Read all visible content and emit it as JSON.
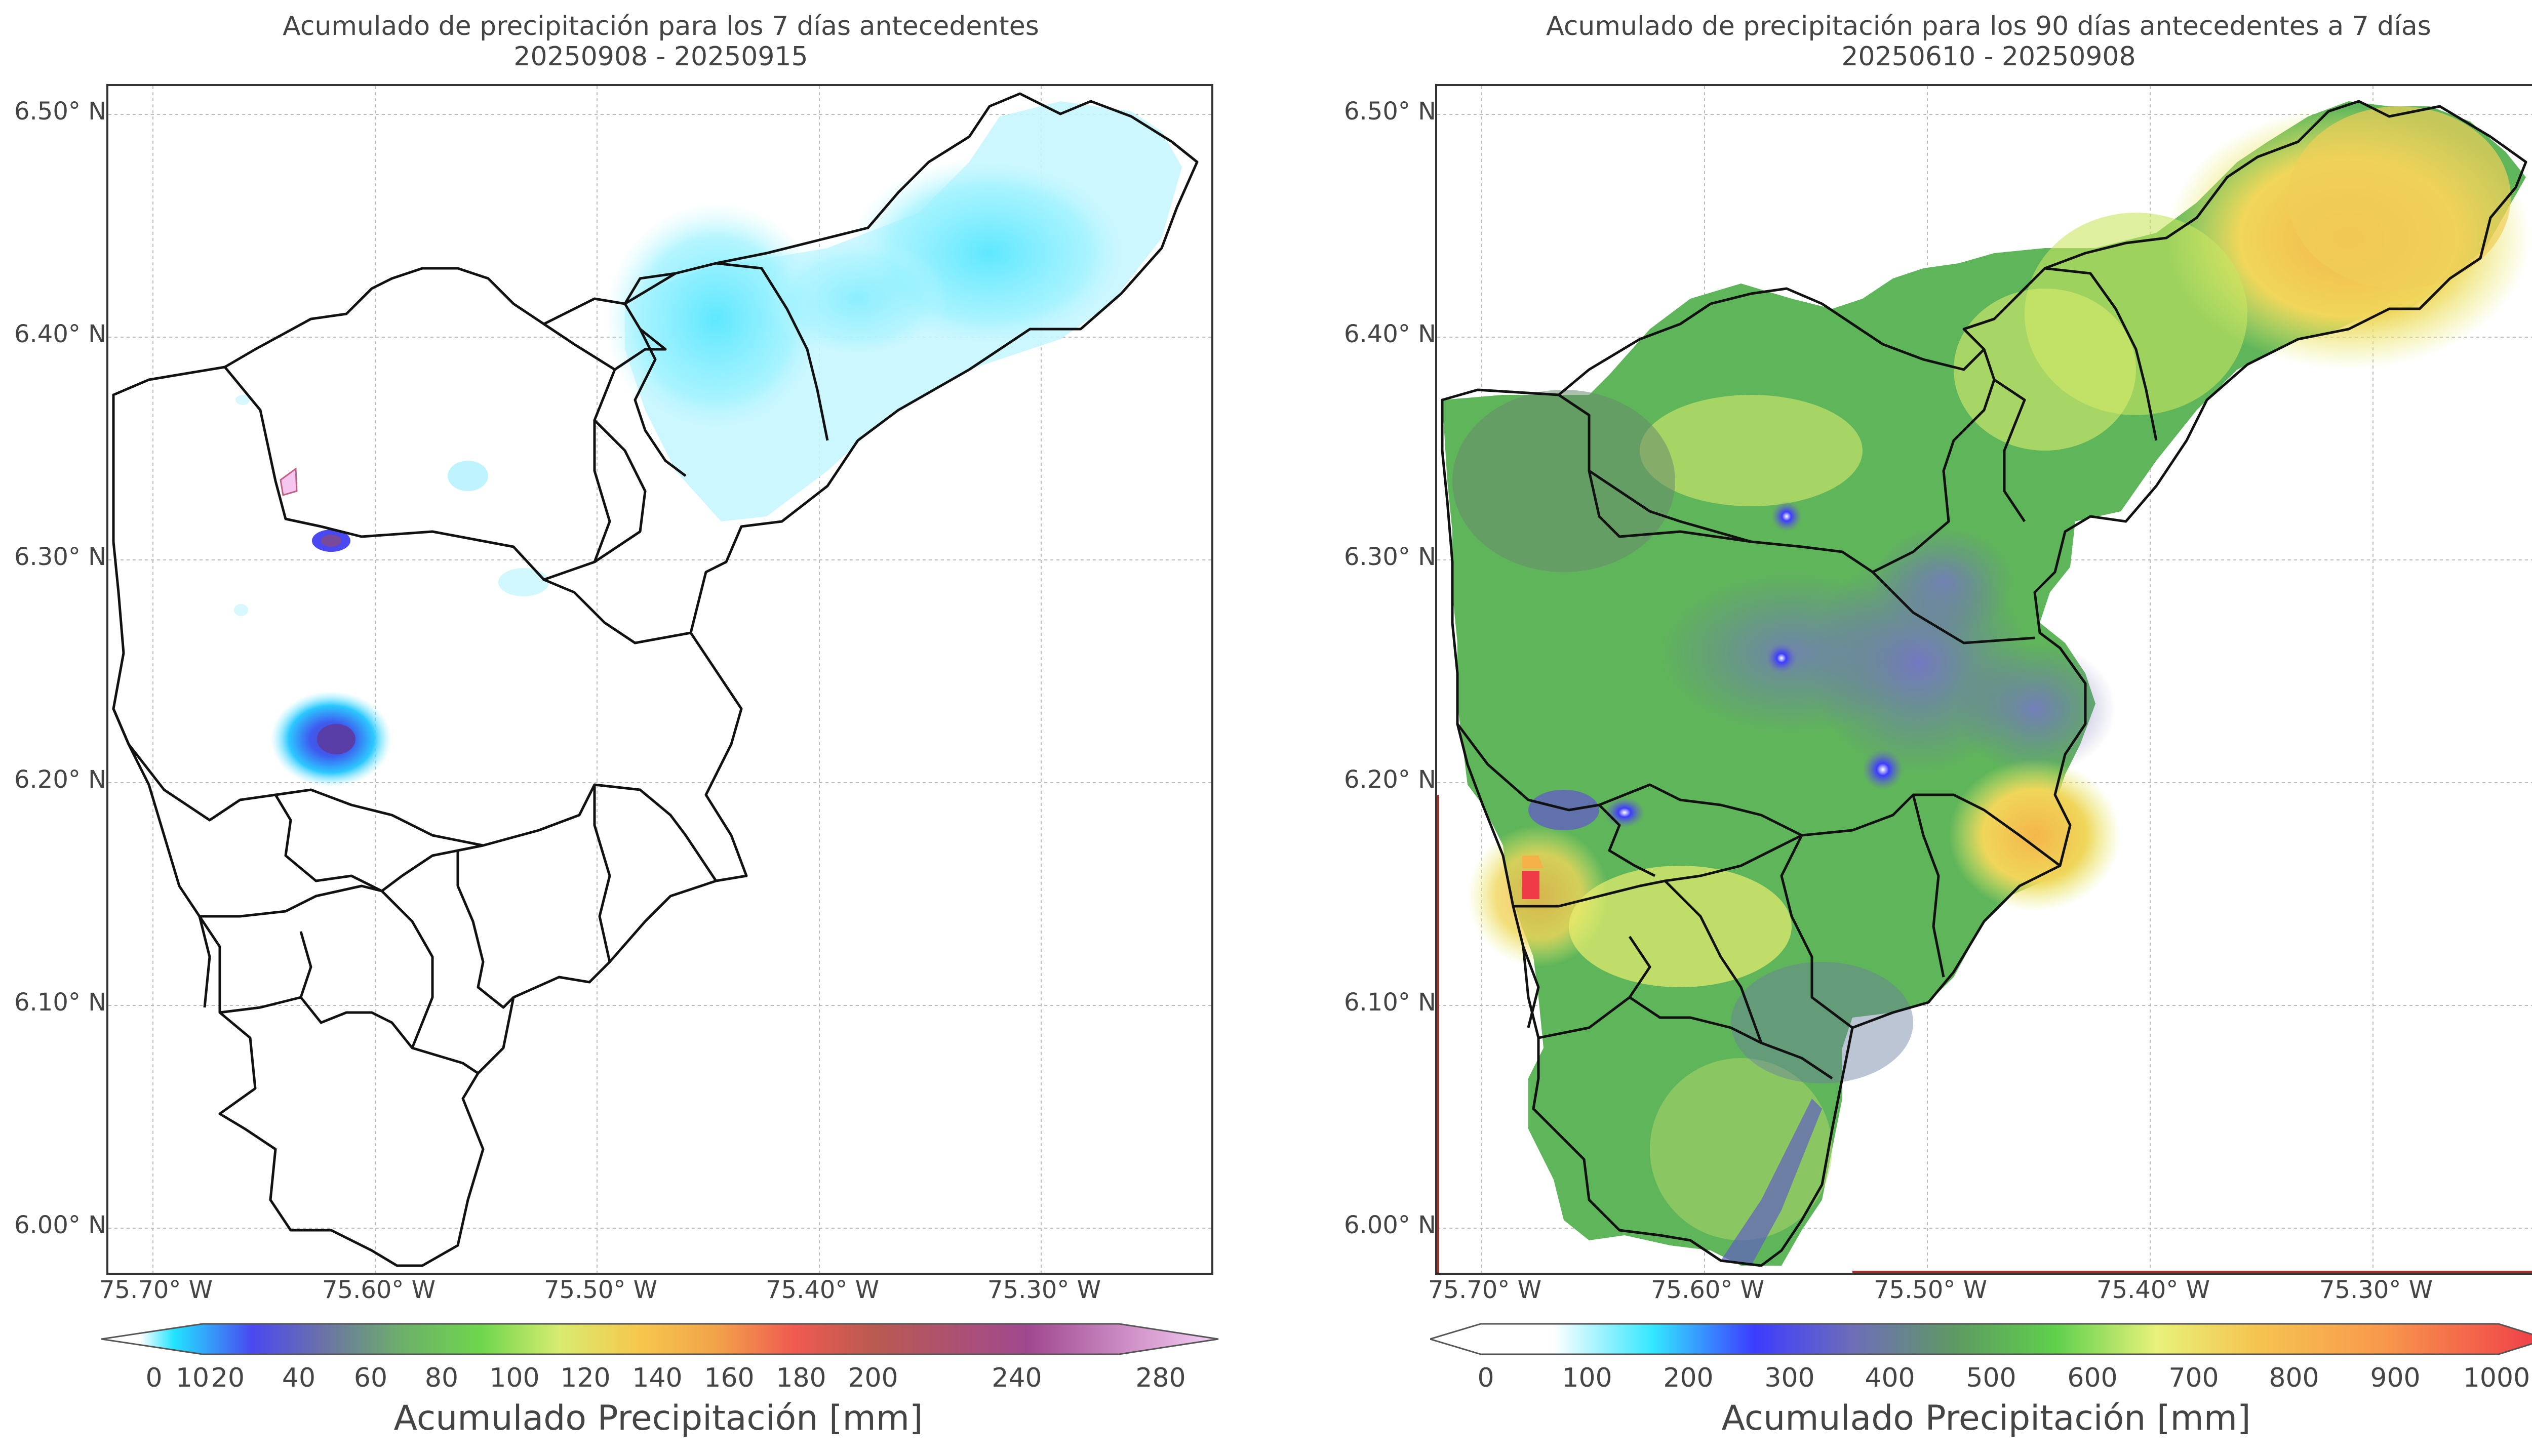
{
  "left_panel": {
    "title_line1": "Acumulado de precipitación para los 7 días antecedentes",
    "title_line2": "20250908 - 20250915",
    "lat_ticks": [
      "6.50° N",
      "6.40° N",
      "6.30° N",
      "6.20° N",
      "6.10° N",
      "6.00° N"
    ],
    "lon_ticks": [
      "75.70° W",
      "75.60° W",
      "75.50° W",
      "75.40° W",
      "75.30° W"
    ],
    "colorbar": {
      "title": "Acumulado Precipitación [mm]",
      "ticks": [
        "0",
        "10",
        "20",
        "40",
        "60",
        "80",
        "100",
        "120",
        "140",
        "160",
        "180",
        "200",
        "240",
        "280"
      ],
      "colors": [
        "#ffffff",
        "#22e4ff",
        "#4a48f0",
        "#6c73a6",
        "#6db069",
        "#6ed64c",
        "#d8ec70",
        "#f6c84c",
        "#f2a34a",
        "#f05a50",
        "#ba5a50",
        "#a04890",
        "#c073c0",
        "#f7d0f6"
      ]
    }
  },
  "right_panel": {
    "title_line1": "Acumulado de precipitación para los 90 días antecedentes a 7 días",
    "title_line2": "20250610 - 20250908",
    "lat_ticks": [
      "6.50° N",
      "6.40° N",
      "6.30° N",
      "6.20° N",
      "6.10° N",
      "6.00° N"
    ],
    "lon_ticks": [
      "75.70° W",
      "75.60° W",
      "75.50° W",
      "75.40° W",
      "75.30° W"
    ],
    "colorbar": {
      "title": "Acumulado Precipitación [mm]",
      "ticks": [
        "0",
        "100",
        "200",
        "300",
        "400",
        "500",
        "600",
        "700",
        "800",
        "900",
        "1000"
      ],
      "colors": [
        "#ffffff",
        "#ffffff",
        "#33e6ff",
        "#3c3cff",
        "#6e6eb8",
        "#5e9a62",
        "#5fd04c",
        "#e8f27a",
        "#f5c450",
        "#f89a4c",
        "#ef3a48"
      ]
    }
  },
  "chart_data": [
    {
      "type": "heatmap",
      "title": "Acumulado de precipitación para los 7 días antecedentes 20250908 - 20250915",
      "units": "mm",
      "colorbar_range": [
        0,
        280
      ],
      "xlim": [
        -75.72,
        -75.22
      ],
      "ylim": [
        5.98,
        6.52
      ],
      "x_ticks": [
        -75.7,
        -75.6,
        -75.5,
        -75.4,
        -75.3
      ],
      "y_ticks": [
        6.0,
        6.1,
        6.2,
        6.3,
        6.4,
        6.5
      ],
      "grid": true
    },
    {
      "type": "heatmap",
      "title": "Acumulado de precipitación para los 90 días antecedentes a 7 días 20250610 - 20250908",
      "units": "mm",
      "colorbar_range": [
        0,
        1000
      ],
      "xlim": [
        -75.72,
        -75.22
      ],
      "ylim": [
        5.98,
        6.52
      ],
      "x_ticks": [
        -75.7,
        -75.6,
        -75.5,
        -75.4,
        -75.3
      ],
      "y_ticks": [
        6.0,
        6.1,
        6.2,
        6.3,
        6.4,
        6.5
      ],
      "grid": true
    }
  ]
}
